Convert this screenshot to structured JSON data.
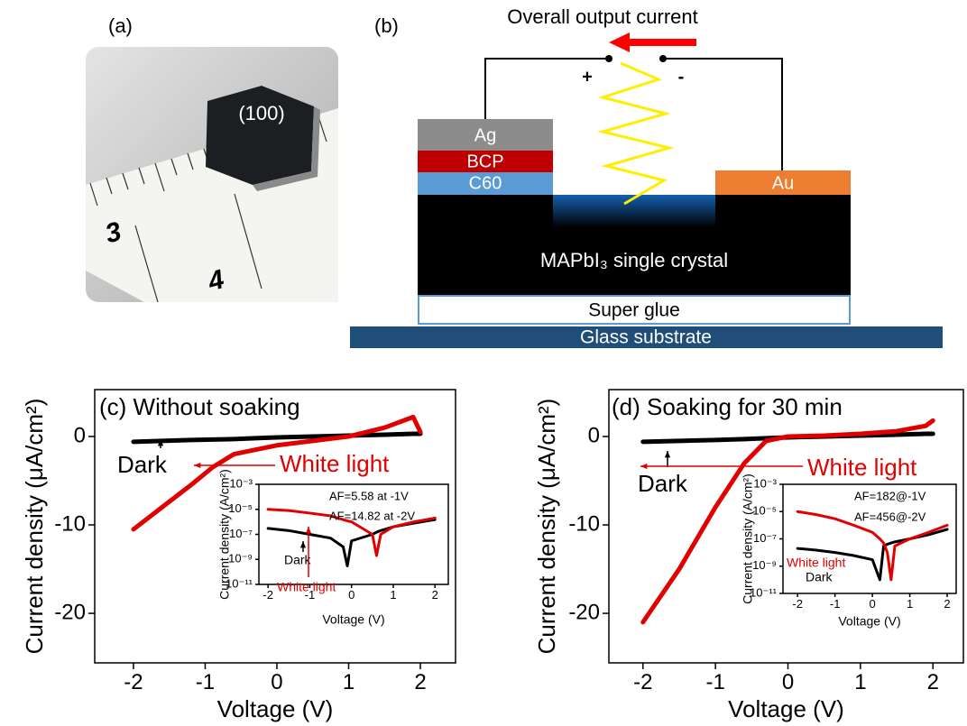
{
  "panel_a": {
    "label": "(a)",
    "crystal_face": "(100)",
    "ruler_marks": [
      "3",
      "4"
    ]
  },
  "panel_b": {
    "label": "(b)",
    "current_label": "Overall output current",
    "plus": "+",
    "minus": "-",
    "layers": {
      "ag": "Ag",
      "bcp": "BCP",
      "c60": "C60",
      "au": "Au",
      "crystal": "MAPbI₃ single crystal",
      "glue": "Super glue",
      "glass": "Glass substrate"
    }
  },
  "chart_data": [
    {
      "type": "line",
      "title": "(c) Without soaking",
      "x_label": "Voltage (V)",
      "y_label": "Current density (μA/cm²)",
      "xlim": [
        -2.54,
        2.49
      ],
      "xticks": [
        -2,
        -1,
        0,
        1,
        2
      ],
      "ylim": [
        -25.6,
        5.3
      ],
      "yticks": [
        -20,
        -10,
        0
      ],
      "x": [
        -2,
        -1.6,
        -1.2,
        -0.9,
        -0.6,
        -0.3,
        0,
        0.5,
        1,
        1.5,
        1.9,
        2
      ],
      "series": [
        {
          "name": "Dark",
          "color": "#000000",
          "values": [
            -0.6,
            -0.5,
            -0.4,
            -0.35,
            -0.3,
            -0.2,
            -0.1,
            0,
            0.1,
            0.2,
            0.3,
            0.3
          ]
        },
        {
          "name": "White light",
          "color": "#e00000",
          "values": [
            -10.5,
            -8,
            -5.5,
            -3.5,
            -2,
            -1.5,
            -1,
            -0.5,
            0,
            1,
            2.2,
            0.5
          ]
        }
      ]
    },
    {
      "type": "line",
      "x_label": "Voltage (V)",
      "y_label": "Current density (A/cm²)",
      "y_scale": "log",
      "xlim": [
        -2.22,
        2.32
      ],
      "xticks": [
        -2,
        -1,
        0,
        1,
        2
      ],
      "ylim": [
        1e-11,
        0.001
      ],
      "yticks": [
        {
          "value": 0.001,
          "label": "10⁻³"
        },
        {
          "value": 1e-05,
          "label": "10⁻⁵"
        },
        {
          "value": 1e-07,
          "label": "10⁻⁷"
        },
        {
          "value": 1e-09,
          "label": "10⁻⁹"
        },
        {
          "value": 1e-11,
          "label": "10⁻¹¹"
        }
      ],
      "annotations": [
        "AF=5.58 at -1V",
        "AF=14.82 at -2V"
      ],
      "x": [
        -2,
        -1.5,
        -1,
        -0.5,
        -0.2,
        -0.1,
        0,
        0.5,
        0.6,
        0.7,
        1,
        1.5,
        2
      ],
      "series": [
        {
          "name": "Dark",
          "color": "#000000",
          "values": [
            3e-07,
            2e-07,
            1e-07,
            5e-08,
            1e-08,
            3e-10,
            3e-08,
            1e-07,
            1.5e-07,
            2e-07,
            4e-07,
            8e-07,
            1.5e-06
          ]
        },
        {
          "name": "White light",
          "color": "#e00000",
          "values": [
            1e-05,
            8e-06,
            5e-06,
            3e-06,
            1.5e-06,
            1.2e-06,
            1e-06,
            1e-07,
            2e-09,
            1e-07,
            4e-07,
            1e-06,
            2e-06
          ]
        }
      ]
    },
    {
      "type": "line",
      "title": "(d) Soaking for 30 min",
      "x_label": "Voltage (V)",
      "y_label": "Current density (μA/cm²)",
      "xlim": [
        -2.47,
        2.42
      ],
      "xticks": [
        -2,
        -1,
        0,
        1,
        2
      ],
      "ylim": [
        -25.6,
        5.3
      ],
      "yticks": [
        -20,
        -10,
        0
      ],
      "x": [
        -2,
        -1.5,
        -1,
        -0.6,
        -0.3,
        0,
        0.5,
        1,
        1.5,
        1.9,
        2
      ],
      "series": [
        {
          "name": "Dark",
          "color": "#000000",
          "values": [
            -0.6,
            -0.5,
            -0.4,
            -0.3,
            -0.2,
            -0.1,
            0,
            0.1,
            0.2,
            0.3,
            0.3
          ]
        },
        {
          "name": "White light",
          "color": "#e00000",
          "values": [
            -21,
            -15,
            -8,
            -3,
            -0.5,
            0,
            0.1,
            0.3,
            0.6,
            1.2,
            1.8
          ]
        }
      ]
    },
    {
      "type": "line",
      "x_label": "Voltage (V)",
      "y_label": "Current density (A/cm²)",
      "y_scale": "log",
      "xlim": [
        -2.39,
        2.24
      ],
      "xticks": [
        -2,
        -1,
        0,
        1,
        2
      ],
      "ylim": [
        1e-11,
        0.001
      ],
      "yticks": [
        {
          "value": 0.001,
          "label": "10⁻³"
        },
        {
          "value": 1e-05,
          "label": "10⁻⁵"
        },
        {
          "value": 1e-07,
          "label": "10⁻⁷"
        },
        {
          "value": 1e-09,
          "label": "10⁻⁹"
        },
        {
          "value": 1e-11,
          "label": "10⁻¹¹"
        }
      ],
      "annotations": [
        "AF=182@-1V",
        "AF=456@-2V"
      ],
      "x": [
        -2,
        -1.5,
        -1,
        -0.5,
        0,
        0.2,
        0.3,
        0.4,
        0.5,
        0.6,
        1,
        1.5,
        2
      ],
      "series": [
        {
          "name": "Dark",
          "color": "#000000",
          "values": [
            2e-08,
            1.5e-08,
            1e-08,
            6e-09,
            3e-09,
            1e-10,
            3e-08,
            4e-08,
            5e-08,
            6e-08,
            1e-07,
            2e-07,
            5e-07
          ]
        },
        {
          "name": "White light",
          "color": "#e00000",
          "values": [
            1e-05,
            6e-06,
            3e-06,
            1e-06,
            3e-07,
            1e-07,
            5e-08,
            1e-08,
            1e-10,
            3e-08,
            1e-07,
            3e-07,
            1e-06
          ]
        }
      ]
    }
  ]
}
